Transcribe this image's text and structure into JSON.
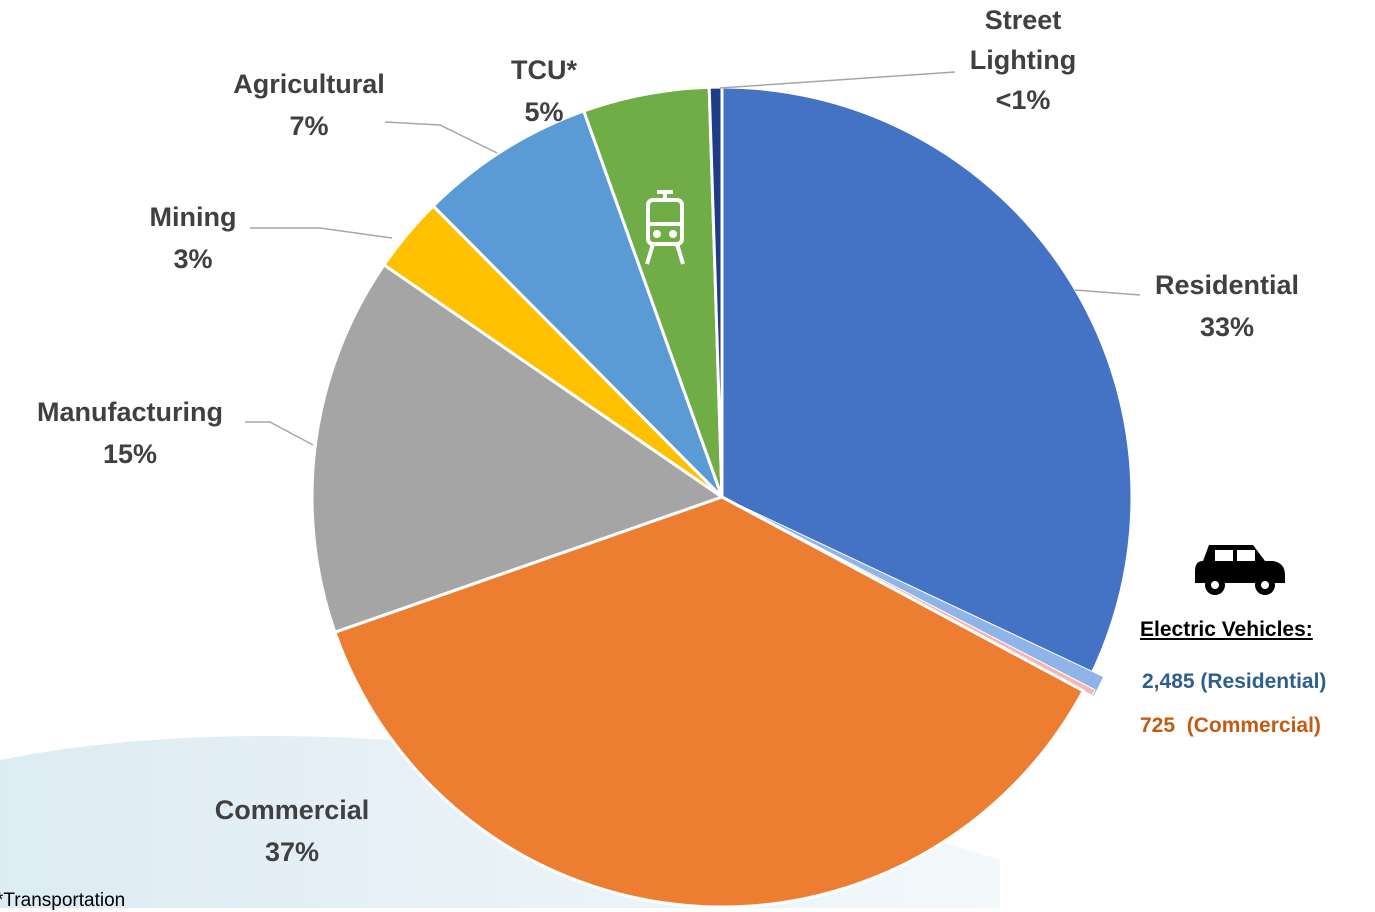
{
  "chart_data": {
    "type": "pie",
    "categories": [
      "Residential",
      "Commercial",
      "Manufacturing",
      "Mining",
      "Agricultural",
      "TCU*",
      "Street Lighting"
    ],
    "values": [
      33,
      37,
      15,
      3,
      7,
      5,
      0.5
    ],
    "value_labels": [
      "33%",
      "37%",
      "15%",
      "3%",
      "7%",
      "5%",
      "<1%"
    ],
    "colors": [
      "#4472c4",
      "#ed7d31",
      "#a5a5a5",
      "#ffc000",
      "#5b9bd5",
      "#70ad47",
      "#1f3c88"
    ],
    "annotation": {
      "title": "Electric Vehicles:",
      "items": [
        {
          "value": 2485,
          "label": "2,485 (Residential)",
          "color": "#2e5f8a",
          "mark_color": "#8fb4e8"
        },
        {
          "value": 725,
          "label": "725  (Commercial)",
          "color": "#c55a11",
          "mark_color": "#f4b6b6"
        }
      ]
    },
    "footnote": "*Transportation"
  }
}
